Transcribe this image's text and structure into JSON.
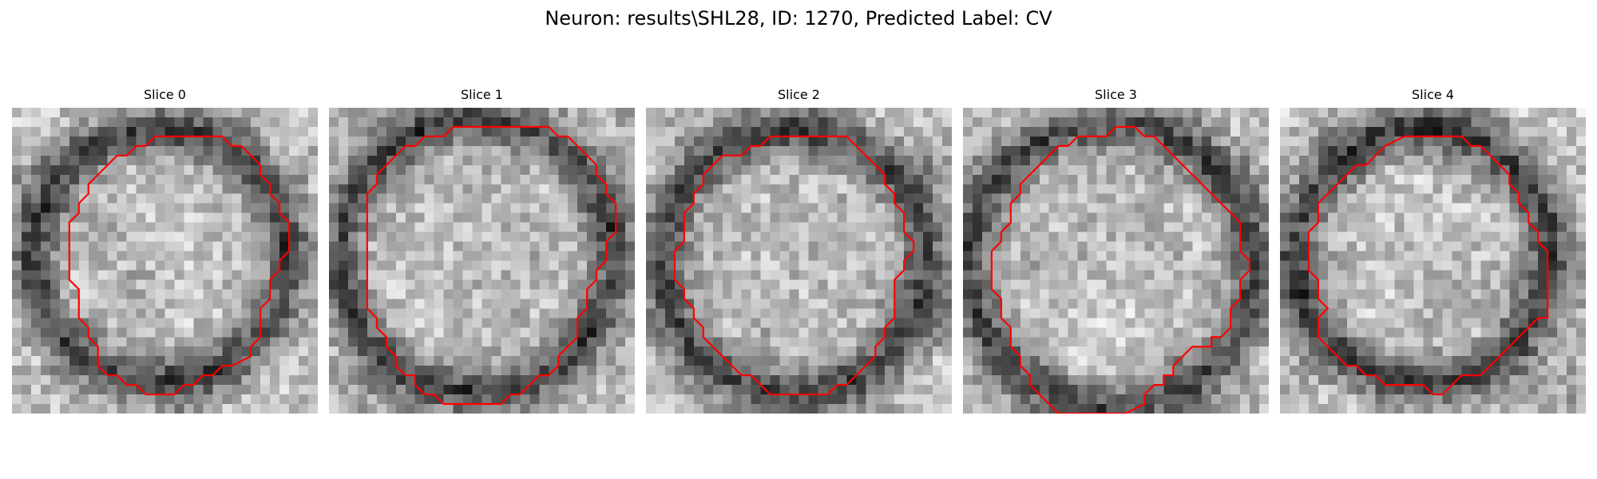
{
  "figure": {
    "title": "Neuron: results\\SHL28, ID: 1270, Predicted Label: CV"
  },
  "image": {
    "grid_size": 32,
    "contour_color": "#ff0000",
    "colormap": "gray"
  },
  "slices": [
    {
      "title": "Slice 0"
    },
    {
      "title": "Slice 1"
    },
    {
      "title": "Slice 2"
    },
    {
      "title": "Slice 3"
    },
    {
      "title": "Slice 4"
    }
  ]
}
